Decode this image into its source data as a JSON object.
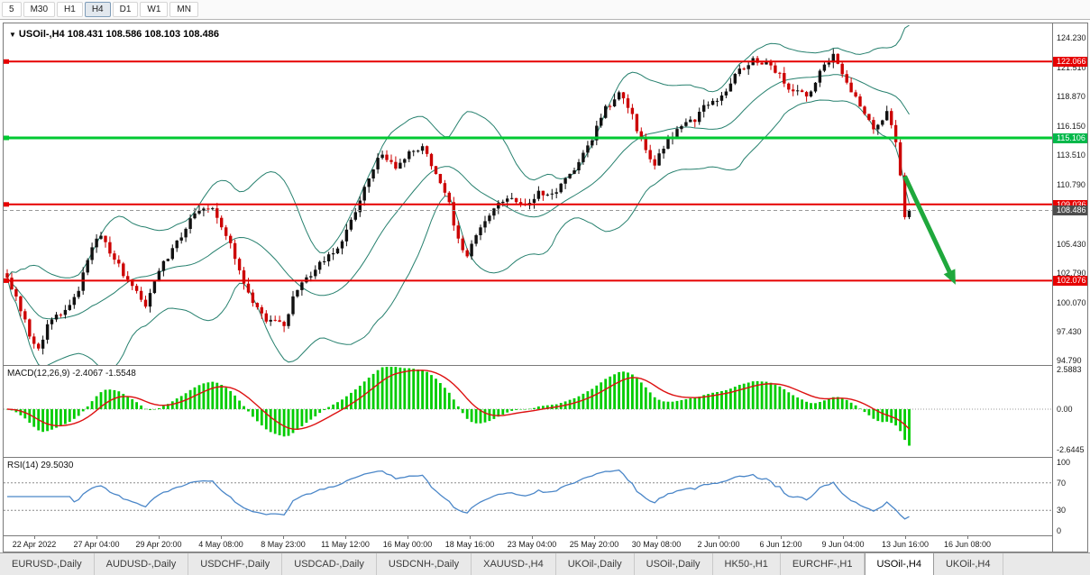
{
  "toolbar": {
    "timeframes": [
      "5",
      "M30",
      "H1",
      "H4",
      "D1",
      "W1",
      "MN"
    ],
    "active": "H4"
  },
  "chart": {
    "collapse_icon": "▼",
    "title": "USOil-,H4",
    "ohlc": "108.431 108.586 108.103 108.486"
  },
  "price_axis": {
    "ticks": [
      124.23,
      121.51,
      118.87,
      116.15,
      113.51,
      110.79,
      105.43,
      102.79,
      100.07,
      97.43,
      94.79
    ],
    "badges": [
      {
        "text": "122.066",
        "price": 122.066,
        "color": "#e60000"
      },
      {
        "text": "115.106",
        "price": 115.106,
        "color": "#00b84a"
      },
      {
        "text": "109.036",
        "price": 109.036,
        "color": "#e60000"
      },
      {
        "text": "108.486",
        "price": 108.486,
        "color": "#4d4d4d"
      },
      {
        "text": "102.076",
        "price": 102.076,
        "color": "#e60000"
      }
    ]
  },
  "macd": {
    "name": "MACD(12,26,9)",
    "value_main": "-2.4067",
    "value_signal": "-1.5548",
    "scale": [
      "2.5883",
      "0.00",
      "-2.6445"
    ],
    "histogram_color": "#00cc00",
    "signal_color": "#dd1111"
  },
  "rsi": {
    "name": "RSI(14)",
    "value": "29.5030",
    "scale": [
      "100",
      "70",
      "30",
      "0"
    ],
    "scale_values": [
      100,
      70,
      30,
      0
    ],
    "levels": [
      70,
      30
    ],
    "line_color": "#4a86c8"
  },
  "time_axis": {
    "labels": [
      "22 Apr 2022",
      "27 Apr 04:00",
      "29 Apr 20:00",
      "4 May 08:00",
      "8 May 23:00",
      "11 May 12:00",
      "16 May 00:00",
      "18 May 16:00",
      "23 May 04:00",
      "25 May 20:00",
      "30 May 08:00",
      "2 Jun 00:00",
      "6 Jun 12:00",
      "9 Jun 04:00",
      "13 Jun 16:00",
      "16 Jun 08:00"
    ]
  },
  "tabs": {
    "items": [
      "EURUSD-,Daily",
      "AUDUSD-,Daily",
      "USDCHF-,Daily",
      "USDCAD-,Daily",
      "USDCNH-,Daily",
      "XAUUSD-,H4",
      "UKOil-,Daily",
      "USOil-,Daily",
      "HK50-,H1",
      "EURCHF-,H1",
      "USOil-,H4",
      "UKOil-,H4"
    ],
    "active": "USOil-,H4"
  },
  "chart_data": {
    "type": "candlestick",
    "symbol": "USOil-",
    "timeframe": "H4",
    "title": "USOil-,H4 108.431 108.586 108.103 108.486",
    "last_ohlc": {
      "open": 108.431,
      "high": 108.586,
      "low": 108.103,
      "close": 108.486
    },
    "n_candles": 203,
    "y_axis_top_tick": 124.23,
    "y_axis_bottom_tick": 94.79,
    "price_anchors": [
      [
        0,
        102.2
      ],
      [
        2,
        100.8
      ],
      [
        5,
        97.0
      ],
      [
        7,
        95.8
      ],
      [
        10,
        98.8
      ],
      [
        13,
        99.3
      ],
      [
        16,
        101.3
      ],
      [
        19,
        105.0
      ],
      [
        21,
        106.4
      ],
      [
        24,
        104.0
      ],
      [
        28,
        101.5
      ],
      [
        31,
        99.8
      ],
      [
        34,
        103.0
      ],
      [
        39,
        106.3
      ],
      [
        42,
        108.3
      ],
      [
        46,
        108.8
      ],
      [
        50,
        105.5
      ],
      [
        54,
        100.8
      ],
      [
        58,
        98.6
      ],
      [
        62,
        98.1
      ],
      [
        65,
        101.5
      ],
      [
        70,
        103.5
      ],
      [
        74,
        105.2
      ],
      [
        78,
        108.2
      ],
      [
        81,
        111.5
      ],
      [
        84,
        113.8
      ],
      [
        87,
        112.5
      ],
      [
        90,
        113.8
      ],
      [
        93,
        114.3
      ],
      [
        96,
        112.0
      ],
      [
        99,
        109.0
      ],
      [
        101,
        105.8
      ],
      [
        103,
        104.5
      ],
      [
        106,
        107.0
      ],
      [
        109,
        108.8
      ],
      [
        112,
        109.8
      ],
      [
        116,
        108.8
      ],
      [
        119,
        110.3
      ],
      [
        122,
        109.8
      ],
      [
        125,
        111.3
      ],
      [
        128,
        112.8
      ],
      [
        131,
        115.0
      ],
      [
        134,
        117.8
      ],
      [
        137,
        119.2
      ],
      [
        140,
        117.0
      ],
      [
        143,
        113.8
      ],
      [
        145,
        112.8
      ],
      [
        148,
        114.8
      ],
      [
        151,
        116.3
      ],
      [
        154,
        116.8
      ],
      [
        157,
        118.3
      ],
      [
        160,
        119.0
      ],
      [
        163,
        120.8
      ],
      [
        167,
        122.4
      ],
      [
        170,
        121.8
      ],
      [
        173,
        120.8
      ],
      [
        176,
        119.3
      ],
      [
        179,
        118.9
      ],
      [
        182,
        121.0
      ],
      [
        185,
        122.5
      ],
      [
        188,
        120.0
      ],
      [
        191,
        118.0
      ],
      [
        194,
        115.9
      ],
      [
        197,
        117.4
      ],
      [
        199,
        115.0
      ],
      [
        200,
        111.5
      ],
      [
        201,
        107.8
      ],
      [
        202,
        108.486
      ]
    ],
    "horizontal_lines": [
      {
        "price": 122.066,
        "color": "#e60000",
        "width": 2
      },
      {
        "price": 115.106,
        "color": "#00c832",
        "width": 3
      },
      {
        "price": 109.036,
        "color": "#e60000",
        "width": 2
      },
      {
        "price": 102.076,
        "color": "#e60000",
        "width": 2
      }
    ],
    "current_price_line": {
      "price": 108.486,
      "style": "dashed",
      "color": "#999999"
    },
    "bollinger": {
      "period": 20,
      "deviation": 2,
      "color": "#26806e"
    },
    "candle_up_color": "#111111",
    "candle_down_color": "#cc0000",
    "arrow": {
      "from_index": 201,
      "from_price": 111.6,
      "to_index": 211,
      "to_price": 102.9,
      "color": "#1fa83c"
    },
    "macd_indicator": {
      "params": [
        12,
        26,
        9
      ],
      "last_main": -2.4067,
      "last_signal": -1.5548,
      "scale_max": 2.5883,
      "scale_min": -2.6445
    },
    "rsi_indicator": {
      "period": 14,
      "last": 29.503,
      "levels": [
        70,
        30
      ],
      "range": [
        0,
        100
      ]
    }
  }
}
